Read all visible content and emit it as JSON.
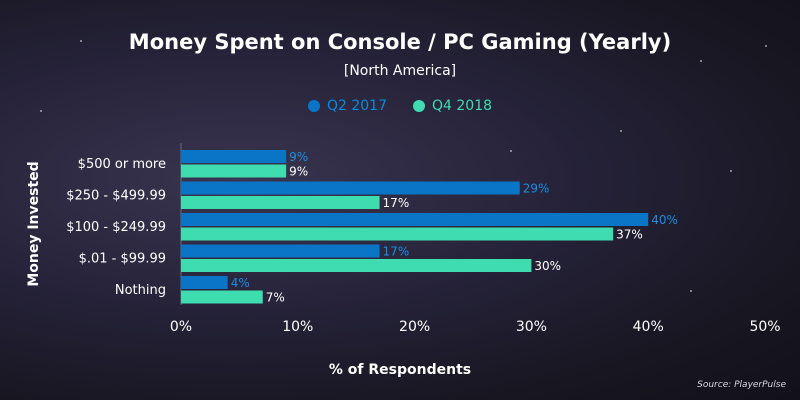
{
  "chart_data": {
    "type": "bar",
    "orientation": "horizontal",
    "title": "Money Spent on Console / PC Gaming (Yearly)",
    "subtitle": "[North America]",
    "xlabel": "% of Respondents",
    "ylabel": "Money Invested",
    "xlim": [
      0,
      50
    ],
    "xticks": [
      "0%",
      "10%",
      "20%",
      "30%",
      "40%",
      "50%"
    ],
    "categories": [
      "$500 or more",
      "$250 - $499.99",
      "$100 - $249.99",
      "$.01 - $99.99",
      "Nothing"
    ],
    "series": [
      {
        "name": "Q2 2017",
        "color": "#0a74c7",
        "values": [
          9,
          29,
          40,
          17,
          4
        ],
        "labels": [
          "9%",
          "29%",
          "40%",
          "17%",
          "4%"
        ]
      },
      {
        "name": "Q4 2018",
        "color": "#3fdcb0",
        "values": [
          9,
          17,
          37,
          30,
          7
        ],
        "labels": [
          "9%",
          "17%",
          "37%",
          "30%",
          "7%"
        ]
      }
    ],
    "legend_position": "top-center",
    "grid": false
  },
  "source": "Source: PlayerPulse"
}
